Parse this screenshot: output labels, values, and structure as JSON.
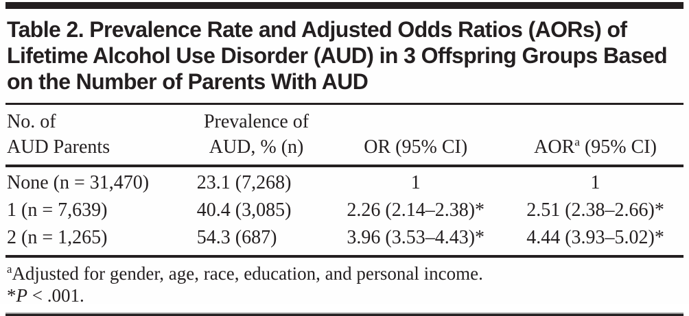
{
  "title": "Table 2. Prevalence Rate and Adjusted Odds Ratios (AORs) of Lifetime Alcohol Use Disorder (AUD) in 3 Offspring Groups Based on the Number of Parents With AUD",
  "colors": {
    "ink": "#231f20",
    "background": "#ffffff"
  },
  "table": {
    "headers": {
      "col1": {
        "line1": "No. of",
        "line2": "AUD Parents"
      },
      "col2": {
        "line1": "Prevalence of",
        "line2": "AUD, % (n)"
      },
      "col3": {
        "line1": "",
        "line2": "OR (95% CI)"
      },
      "col4": {
        "base": "AOR",
        "sup": "a",
        "rest": " (95% CI)"
      }
    },
    "rows": [
      {
        "group": "None (n = 31,470)",
        "prevalence": "23.1 (7,268)",
        "or": "1",
        "aor": "1"
      },
      {
        "group": "1 (n = 7,639)",
        "prevalence": "40.4 (3,085)",
        "or": "2.26 (2.14–2.38)*",
        "aor": "2.51 (2.38–2.66)*"
      },
      {
        "group": "2 (n = 1,265)",
        "prevalence": "54.3 (687)",
        "or": "3.96 (3.53–4.43)*",
        "aor": "4.44 (3.93–5.02)*"
      }
    ]
  },
  "footnotes": {
    "a": {
      "marker": "a",
      "text": "Adjusted for gender, age, race, education, and personal income."
    },
    "p": {
      "marker": "*",
      "italic": "P",
      "rest": " < .001."
    }
  }
}
